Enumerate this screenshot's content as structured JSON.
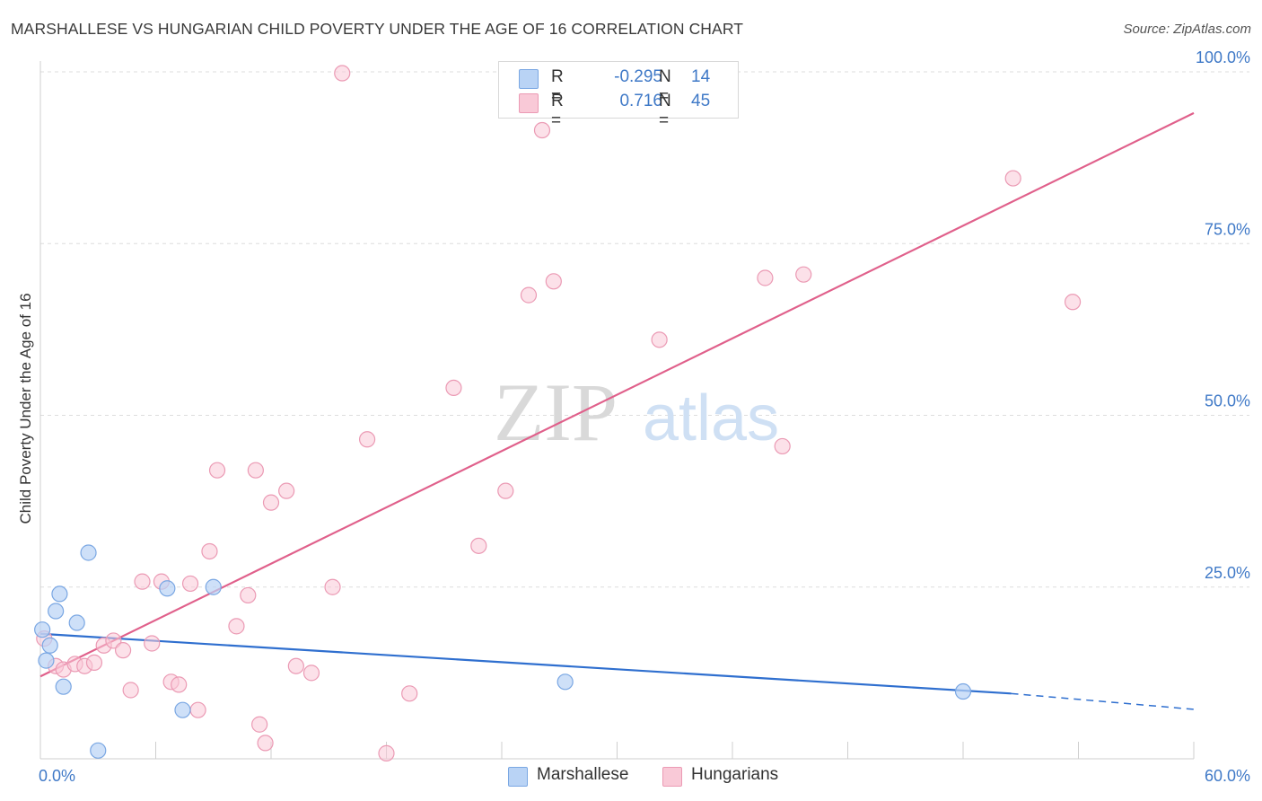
{
  "header": {
    "title": "MARSHALLESE VS HUNGARIAN CHILD POVERTY UNDER THE AGE OF 16 CORRELATION CHART",
    "source": "Source: ZipAtlas.com"
  },
  "watermark": {
    "part1": "ZIP",
    "part2": "atlas"
  },
  "colors": {
    "marshallese_fill": "#b9d3f5",
    "marshallese_stroke": "#7aa7e3",
    "marshallese_line": "#2f6fcf",
    "hungarian_fill": "#f9c9d7",
    "hungarian_stroke": "#eb9ab4",
    "hungarian_line": "#e0608b",
    "tick_label": "#3f79c7",
    "grid": "#dddddd"
  },
  "legend": {
    "rows": [
      {
        "r_label": "R =",
        "r_value": "-0.295",
        "n_label": "N =",
        "n_value": "14"
      },
      {
        "r_label": "R =",
        "r_value": "0.716",
        "n_label": "N =",
        "n_value": "45"
      }
    ]
  },
  "bottom_legend": {
    "items": [
      {
        "label": "Marshallese"
      },
      {
        "label": "Hungarians"
      }
    ]
  },
  "chart_data": {
    "type": "scatter",
    "title": "MARSHALLESE VS HUNGARIAN CHILD POVERTY UNDER THE AGE OF 16 CORRELATION CHART",
    "xlabel": "",
    "ylabel": "Child Poverty Under the Age of 16",
    "xlim": [
      0,
      60
    ],
    "ylim": [
      0,
      100
    ],
    "x_tick_labels": [
      {
        "value": 0,
        "label": "0.0%"
      },
      {
        "value": 60,
        "label": "60.0%"
      }
    ],
    "x_minor_ticks": [
      0,
      6,
      12,
      18,
      24,
      30,
      36,
      42,
      48,
      54,
      60
    ],
    "y_tick_labels": [
      {
        "value": 25,
        "label": "25.0%"
      },
      {
        "value": 50,
        "label": "50.0%"
      },
      {
        "value": 75,
        "label": "75.0%"
      },
      {
        "value": 100,
        "label": "100.0%"
      }
    ],
    "grid": true,
    "series": [
      {
        "name": "Marshallese",
        "r": -0.295,
        "n": 14,
        "points": [
          [
            0.1,
            18.8
          ],
          [
            0.3,
            14.3
          ],
          [
            0.5,
            16.5
          ],
          [
            0.8,
            21.5
          ],
          [
            1.0,
            24.0
          ],
          [
            1.2,
            10.5
          ],
          [
            1.9,
            19.8
          ],
          [
            2.5,
            30.0
          ],
          [
            3.0,
            1.2
          ],
          [
            6.6,
            24.8
          ],
          [
            7.4,
            7.1
          ],
          [
            9.0,
            25.0
          ],
          [
            27.3,
            11.2
          ],
          [
            48.0,
            9.8
          ]
        ],
        "trend": {
          "x1": 0,
          "y1": 18.2,
          "x2": 50.5,
          "y2": 9.5,
          "dash_to_x": 60,
          "dash_to_y": 7.2
        }
      },
      {
        "name": "Hungarians",
        "r": 0.716,
        "n": 45,
        "points": [
          [
            0.2,
            17.5
          ],
          [
            0.8,
            13.5
          ],
          [
            1.2,
            13.0
          ],
          [
            1.8,
            13.8
          ],
          [
            2.3,
            13.5
          ],
          [
            2.8,
            14.0
          ],
          [
            3.3,
            16.5
          ],
          [
            3.8,
            17.2
          ],
          [
            4.3,
            15.8
          ],
          [
            4.7,
            10.0
          ],
          [
            5.3,
            25.8
          ],
          [
            5.8,
            16.8
          ],
          [
            6.3,
            25.8
          ],
          [
            6.8,
            11.2
          ],
          [
            7.2,
            10.8
          ],
          [
            7.8,
            25.5
          ],
          [
            8.2,
            7.1
          ],
          [
            8.8,
            30.2
          ],
          [
            9.2,
            42.0
          ],
          [
            10.2,
            19.3
          ],
          [
            10.8,
            23.8
          ],
          [
            11.2,
            42.0
          ],
          [
            11.4,
            5.0
          ],
          [
            11.7,
            2.3
          ],
          [
            12.0,
            37.3
          ],
          [
            12.8,
            39.0
          ],
          [
            13.3,
            13.5
          ],
          [
            14.1,
            12.5
          ],
          [
            15.2,
            25.0
          ],
          [
            15.7,
            99.8
          ],
          [
            17.0,
            46.5
          ],
          [
            18.0,
            0.8
          ],
          [
            19.2,
            9.5
          ],
          [
            21.5,
            54.0
          ],
          [
            22.8,
            31.0
          ],
          [
            24.2,
            39.0
          ],
          [
            25.4,
            67.5
          ],
          [
            26.1,
            91.5
          ],
          [
            26.7,
            69.5
          ],
          [
            32.2,
            61.0
          ],
          [
            37.7,
            70.0
          ],
          [
            38.6,
            45.5
          ],
          [
            39.7,
            70.5
          ],
          [
            50.6,
            84.5
          ],
          [
            53.7,
            66.5
          ]
        ],
        "trend": {
          "x1": 0,
          "y1": 12.0,
          "x2": 60,
          "y2": 94.0
        }
      }
    ]
  }
}
